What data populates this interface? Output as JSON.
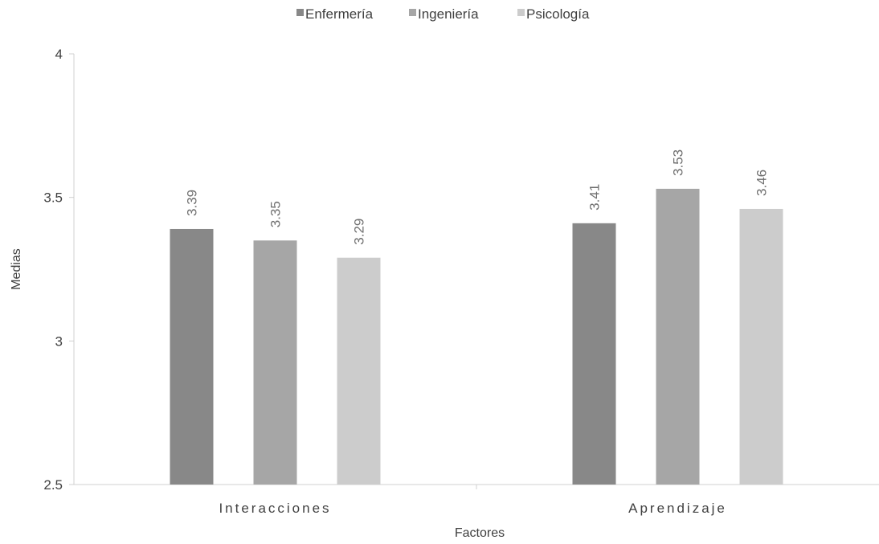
{
  "chart_data": {
    "type": "bar",
    "categories": [
      "Interacciones",
      "Aprendizaje"
    ],
    "series": [
      {
        "name": "Enfermería",
        "values": [
          3.39,
          3.41
        ],
        "color": "#888888"
      },
      {
        "name": "Ingeniería",
        "values": [
          3.35,
          3.53
        ],
        "color": "#a6a6a6"
      },
      {
        "name": "Psicología",
        "values": [
          3.29,
          3.46
        ],
        "color": "#cccccc"
      }
    ],
    "data_labels": [
      [
        "3.39",
        "3.41"
      ],
      [
        "3.35",
        "3.53"
      ],
      [
        "3.29",
        "3.46"
      ]
    ],
    "title": "",
    "xlabel": "Factores",
    "ylabel": "Medias",
    "ylim": [
      2.5,
      4
    ],
    "yticks": [
      2.5,
      3,
      3.5,
      4
    ],
    "ytick_labels": [
      "2.5",
      "3",
      "3.5",
      "4"
    ],
    "grid": false,
    "legend_position": "top"
  }
}
